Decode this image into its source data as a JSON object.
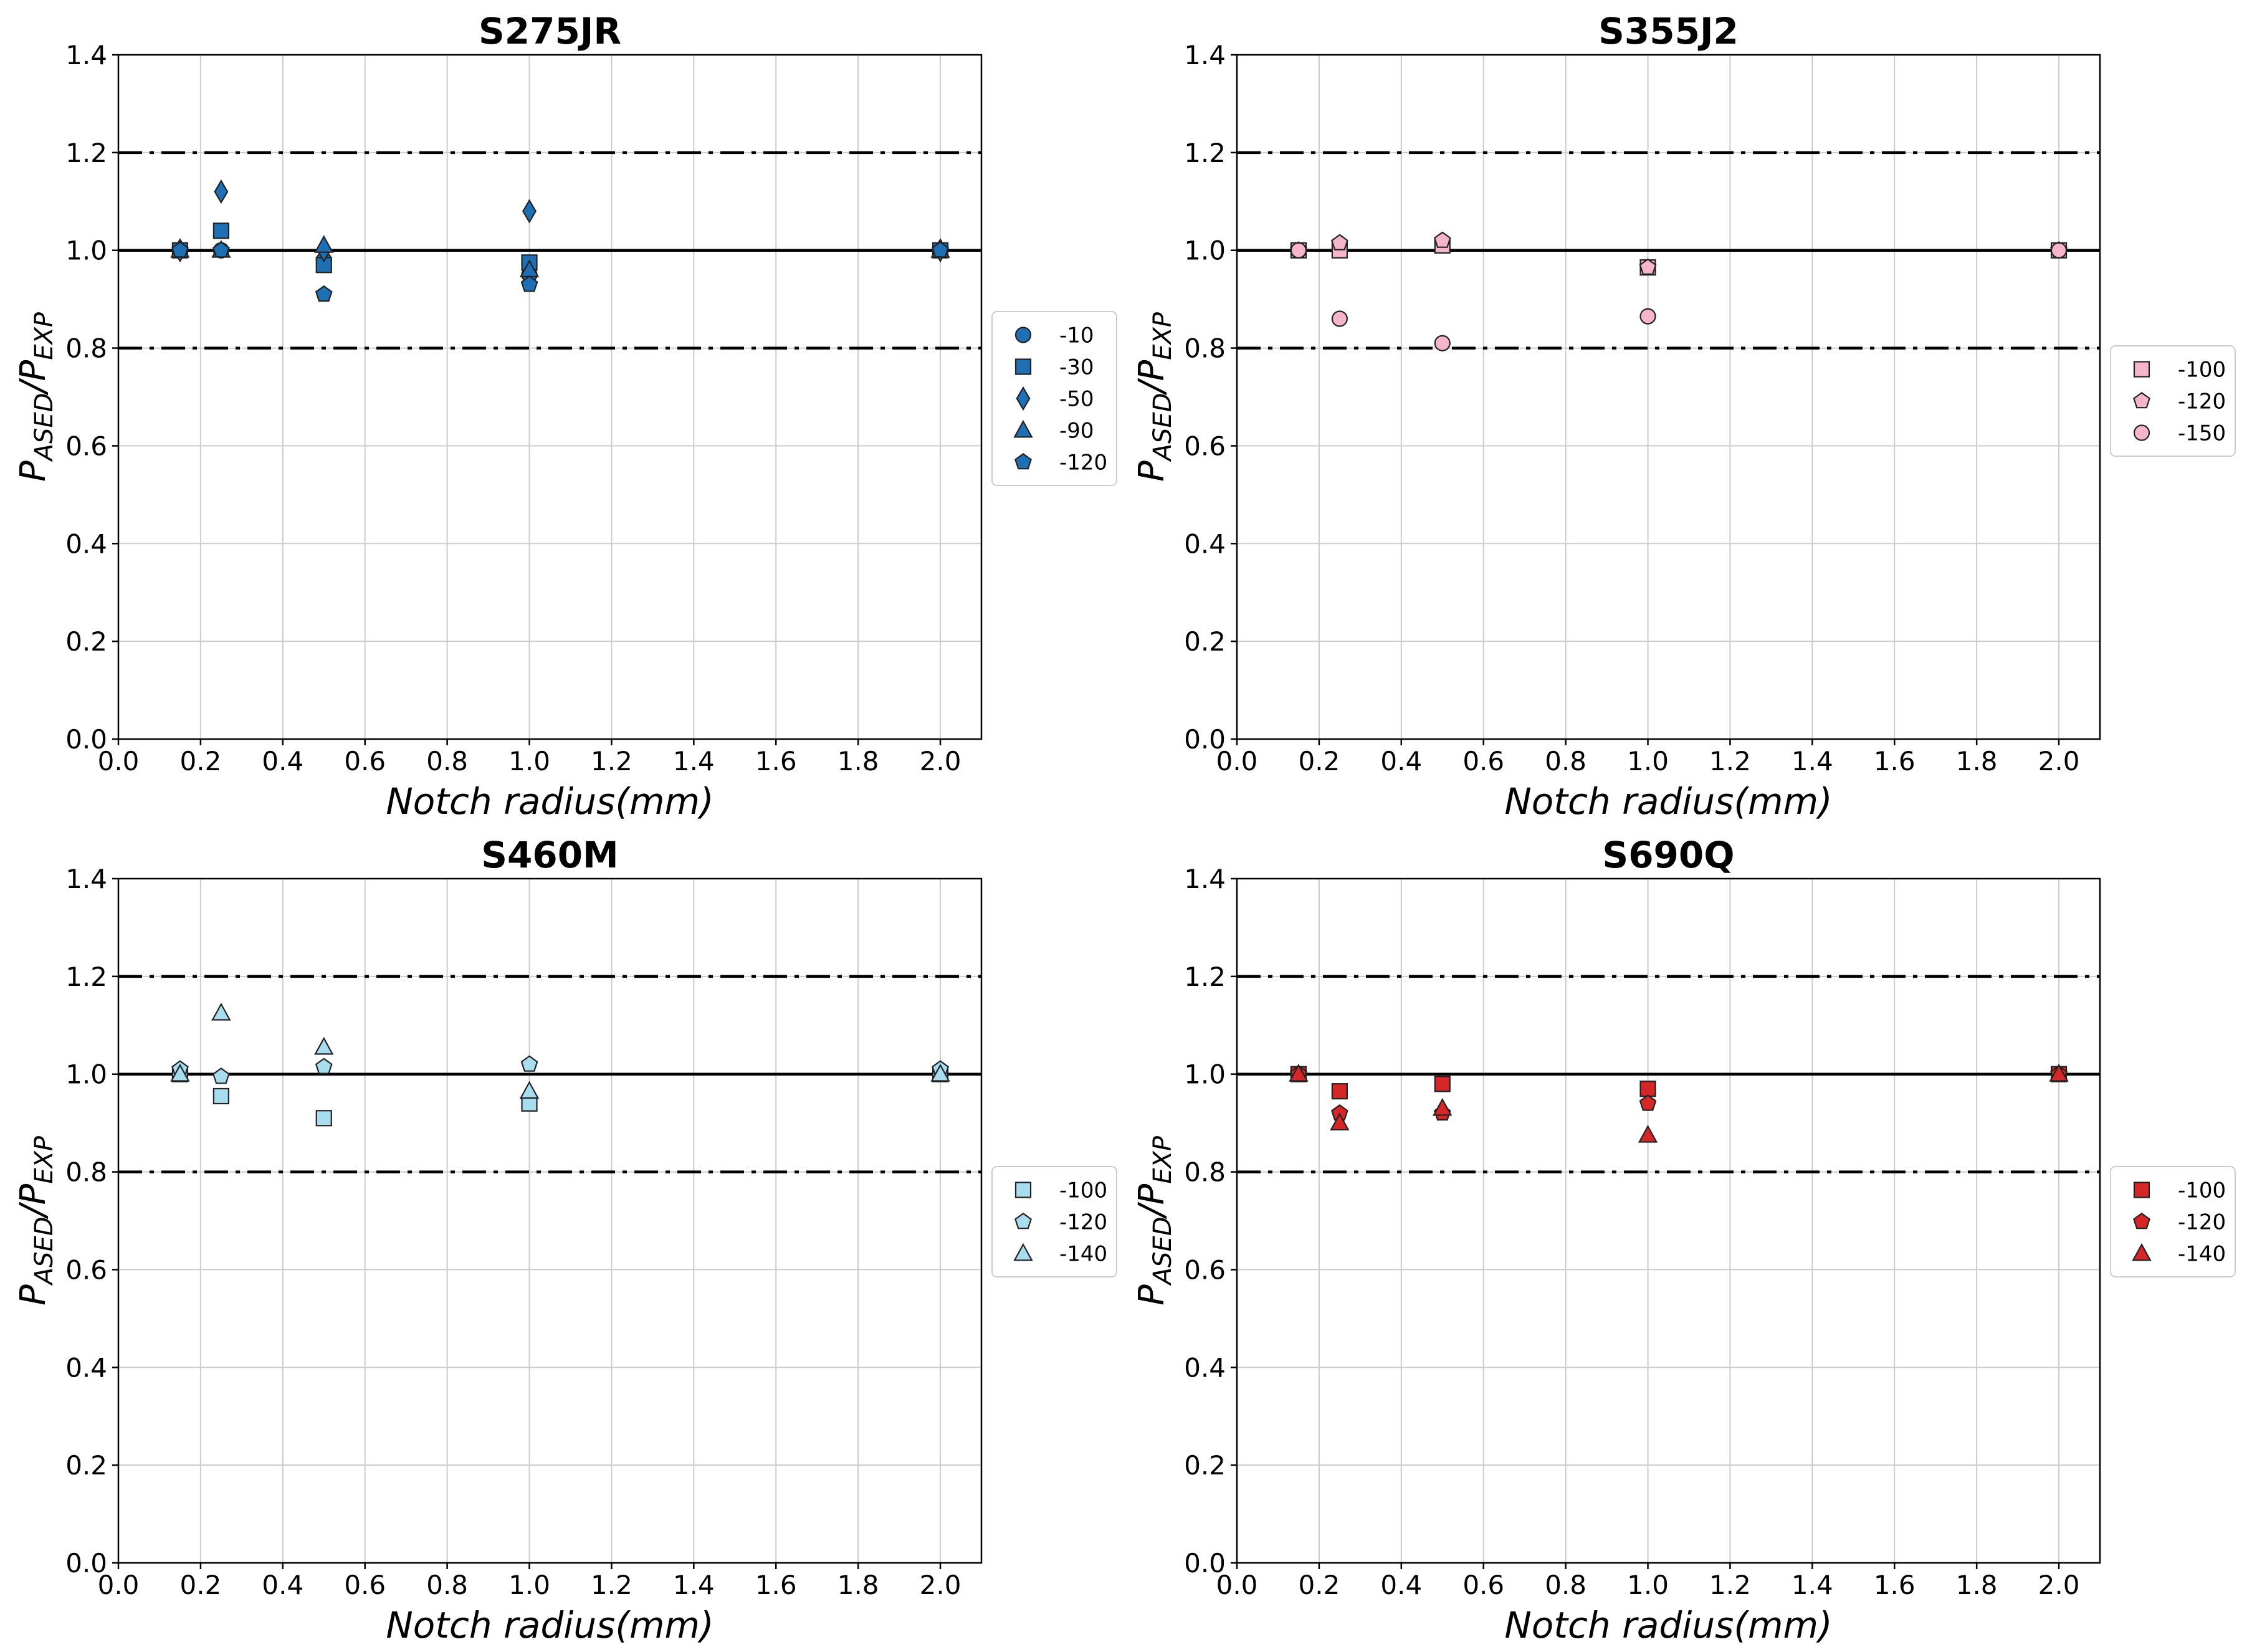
{
  "figure": "Four scatter panels: P_ASED / P_EXP versus notch radius for four steel grades",
  "colors": {
    "S275JR": "#1f6fb4",
    "S355J2": "#f4b6c8",
    "S460M": "#a8dcef",
    "S690Q": "#d62728",
    "edge": "#222222",
    "grid": "#cccccc"
  },
  "chart_data": [
    {
      "type": "scatter",
      "title": "S275JR",
      "xlabel": "Notch radius(mm)",
      "ylabel": {
        "main": "P",
        "sub1": "ASED",
        "sep": "/P",
        "sub2": "EXP"
      },
      "xlim": [
        0.0,
        2.1
      ],
      "ylim": [
        0.0,
        1.4
      ],
      "xticks": [
        "0.0",
        "0.2",
        "0.4",
        "0.6",
        "0.8",
        "1.0",
        "1.2",
        "1.4",
        "1.6",
        "1.8",
        "2.0"
      ],
      "yticks": [
        "0.0",
        "0.2",
        "0.4",
        "0.6",
        "0.8",
        "1.0",
        "1.2",
        "1.4"
      ],
      "ref_lines": {
        "solid": 1.0,
        "dashdot": [
          0.8,
          1.2
        ]
      },
      "color_key": "S275JR",
      "series": [
        {
          "name": "-10",
          "marker": "circle",
          "x": [
            0.15,
            0.25,
            0.5,
            1.0,
            2.0
          ],
          "y": [
            1.0,
            1.0,
            0.98,
            0.95,
            1.0
          ]
        },
        {
          "name": "-30",
          "marker": "square",
          "x": [
            0.15,
            0.25,
            0.5,
            1.0,
            2.0
          ],
          "y": [
            1.0,
            1.04,
            0.97,
            0.975,
            1.0
          ]
        },
        {
          "name": "-50",
          "marker": "diamond",
          "x": [
            0.15,
            0.25,
            0.5,
            1.0,
            2.0
          ],
          "y": [
            1.0,
            1.12,
            1.0,
            1.08,
            1.0
          ]
        },
        {
          "name": "-90",
          "marker": "triangle",
          "x": [
            0.15,
            0.25,
            0.5,
            1.0,
            2.0
          ],
          "y": [
            1.0,
            1.0,
            1.01,
            0.96,
            1.0
          ]
        },
        {
          "name": "-120",
          "marker": "pentagon",
          "x": [
            0.15,
            0.25,
            0.5,
            1.0,
            2.0
          ],
          "y": [
            1.0,
            1.0,
            0.91,
            0.93,
            1.0
          ]
        }
      ]
    },
    {
      "type": "scatter",
      "title": "S355J2",
      "xlabel": "Notch radius(mm)",
      "ylabel": {
        "main": "P",
        "sub1": "ASED",
        "sep": "/P",
        "sub2": "EXP"
      },
      "xlim": [
        0.0,
        2.1
      ],
      "ylim": [
        0.0,
        1.4
      ],
      "xticks": [
        "0.0",
        "0.2",
        "0.4",
        "0.6",
        "0.8",
        "1.0",
        "1.2",
        "1.4",
        "1.6",
        "1.8",
        "2.0"
      ],
      "yticks": [
        "0.0",
        "0.2",
        "0.4",
        "0.6",
        "0.8",
        "1.0",
        "1.2",
        "1.4"
      ],
      "ref_lines": {
        "solid": 1.0,
        "dashdot": [
          0.8,
          1.2
        ]
      },
      "color_key": "S355J2",
      "series": [
        {
          "name": "-100",
          "marker": "square",
          "x": [
            0.15,
            0.25,
            0.5,
            1.0,
            2.0
          ],
          "y": [
            1.0,
            1.0,
            1.01,
            0.965,
            1.0
          ]
        },
        {
          "name": "-120",
          "marker": "pentagon",
          "x": [
            0.15,
            0.25,
            0.5,
            1.0,
            2.0
          ],
          "y": [
            1.0,
            1.015,
            1.02,
            0.965,
            1.0
          ]
        },
        {
          "name": "-150",
          "marker": "circle",
          "x": [
            0.15,
            0.25,
            0.5,
            1.0,
            2.0
          ],
          "y": [
            1.0,
            0.86,
            0.81,
            0.865,
            1.0
          ]
        }
      ]
    },
    {
      "type": "scatter",
      "title": "S460M",
      "xlabel": "Notch radius(mm)",
      "ylabel": {
        "main": "P",
        "sub1": "ASED",
        "sep": "/P",
        "sub2": "EXP"
      },
      "xlim": [
        0.0,
        2.1
      ],
      "ylim": [
        0.0,
        1.4
      ],
      "xticks": [
        "0.0",
        "0.2",
        "0.4",
        "0.6",
        "0.8",
        "1.0",
        "1.2",
        "1.4",
        "1.6",
        "1.8",
        "2.0"
      ],
      "yticks": [
        "0.0",
        "0.2",
        "0.4",
        "0.6",
        "0.8",
        "1.0",
        "1.2",
        "1.4"
      ],
      "ref_lines": {
        "solid": 1.0,
        "dashdot": [
          0.8,
          1.2
        ]
      },
      "color_key": "S460M",
      "series": [
        {
          "name": "-100",
          "marker": "square",
          "x": [
            0.15,
            0.25,
            0.5,
            1.0,
            2.0
          ],
          "y": [
            1.0,
            0.955,
            0.91,
            0.94,
            1.0
          ]
        },
        {
          "name": "-120",
          "marker": "pentagon",
          "x": [
            0.15,
            0.25,
            0.5,
            1.0,
            2.0
          ],
          "y": [
            1.01,
            0.995,
            1.015,
            1.02,
            1.01
          ]
        },
        {
          "name": "-140",
          "marker": "triangle",
          "x": [
            0.15,
            0.25,
            0.5,
            1.0,
            2.0
          ],
          "y": [
            1.0,
            1.125,
            1.055,
            0.965,
            1.0
          ]
        }
      ]
    },
    {
      "type": "scatter",
      "title": "S690Q",
      "xlabel": "Notch radius(mm)",
      "ylabel": {
        "main": "P",
        "sub1": "ASED",
        "sep": "/P",
        "sub2": "EXP"
      },
      "xlim": [
        0.0,
        2.1
      ],
      "ylim": [
        0.0,
        1.4
      ],
      "xticks": [
        "0.0",
        "0.2",
        "0.4",
        "0.6",
        "0.8",
        "1.0",
        "1.2",
        "1.4",
        "1.6",
        "1.8",
        "2.0"
      ],
      "yticks": [
        "0.0",
        "0.2",
        "0.4",
        "0.6",
        "0.8",
        "1.0",
        "1.2",
        "1.4"
      ],
      "ref_lines": {
        "solid": 1.0,
        "dashdot": [
          0.8,
          1.2
        ]
      },
      "color_key": "S690Q",
      "series": [
        {
          "name": "-100",
          "marker": "square",
          "x": [
            0.15,
            0.25,
            0.5,
            1.0,
            2.0
          ],
          "y": [
            1.0,
            0.965,
            0.98,
            0.97,
            1.0
          ]
        },
        {
          "name": "-120",
          "marker": "pentagon",
          "x": [
            0.15,
            0.25,
            0.5,
            1.0,
            2.0
          ],
          "y": [
            1.0,
            0.92,
            0.92,
            0.94,
            1.0
          ]
        },
        {
          "name": "-140",
          "marker": "triangle",
          "x": [
            0.15,
            0.25,
            0.5,
            1.0,
            2.0
          ],
          "y": [
            1.0,
            0.9,
            0.93,
            0.875,
            1.0
          ]
        }
      ]
    }
  ]
}
